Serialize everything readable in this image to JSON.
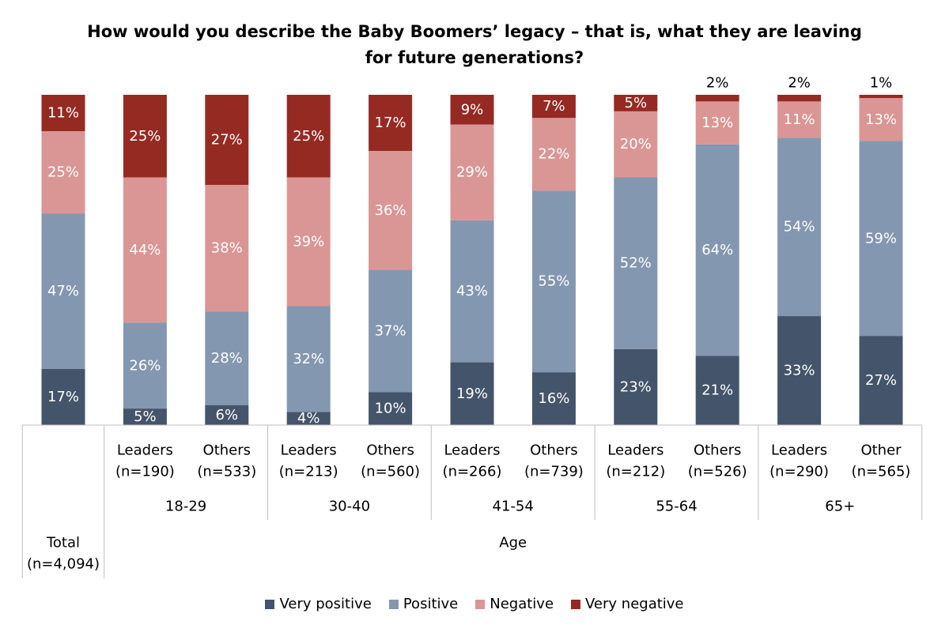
{
  "chart_data": {
    "type": "bar",
    "stacked": true,
    "title": "How would you describe the Baby Boomers’ legacy – that is, what they are leaving for future generations?",
    "categories": [
      "Total (n=4,094)",
      "18-29 Leaders (n=190)",
      "18-29 Others (n=533)",
      "30-40 Leaders (n=213)",
      "30-40 Others (n=560)",
      "41-54 Leaders (n=266)",
      "41-54 Others (n=739)",
      "55-64 Leaders (n=212)",
      "55-64 Others (n=526)",
      "65+ Leaders (n=290)",
      "65+ Other (n=565)"
    ],
    "series": [
      {
        "name": "Very positive",
        "color": "#44546a",
        "values": [
          17,
          5,
          6,
          4,
          10,
          19,
          16,
          23,
          21,
          33,
          27
        ]
      },
      {
        "name": "Positive",
        "color": "#8497b0",
        "values": [
          47,
          26,
          28,
          32,
          37,
          43,
          55,
          52,
          64,
          54,
          59
        ]
      },
      {
        "name": "Negative",
        "color": "#da9694",
        "values": [
          25,
          44,
          38,
          39,
          36,
          29,
          22,
          20,
          13,
          11,
          13
        ]
      },
      {
        "name": "Very negative",
        "color": "#952a23",
        "values": [
          11,
          25,
          27,
          25,
          17,
          9,
          7,
          5,
          2,
          2,
          1
        ]
      }
    ],
    "ylim": [
      0,
      100
    ],
    "legend_position": "bottom",
    "grid": false,
    "x_axis": {
      "total": {
        "line1": "Total",
        "line2": "(n=4,094)"
      },
      "age_label": "Age",
      "groups": [
        {
          "label": "18-29",
          "bars": [
            {
              "line1": "Leaders",
              "line2": "(n=190)"
            },
            {
              "line1": "Others",
              "line2": "(n=533)"
            }
          ]
        },
        {
          "label": "30-40",
          "bars": [
            {
              "line1": "Leaders",
              "line2": "(n=213)"
            },
            {
              "line1": "Others",
              "line2": "(n=560)"
            }
          ]
        },
        {
          "label": "41-54",
          "bars": [
            {
              "line1": "Leaders",
              "line2": "(n=266)"
            },
            {
              "line1": "Others",
              "line2": "(n=739)"
            }
          ]
        },
        {
          "label": "55-64",
          "bars": [
            {
              "line1": "Leaders",
              "line2": "(n=212)"
            },
            {
              "line1": "Others",
              "line2": "(n=526)"
            }
          ]
        },
        {
          "label": "65+",
          "bars": [
            {
              "line1": "Leaders",
              "line2": "(n=290)"
            },
            {
              "line1": "Other",
              "line2": "(n=565)"
            }
          ]
        }
      ]
    }
  }
}
